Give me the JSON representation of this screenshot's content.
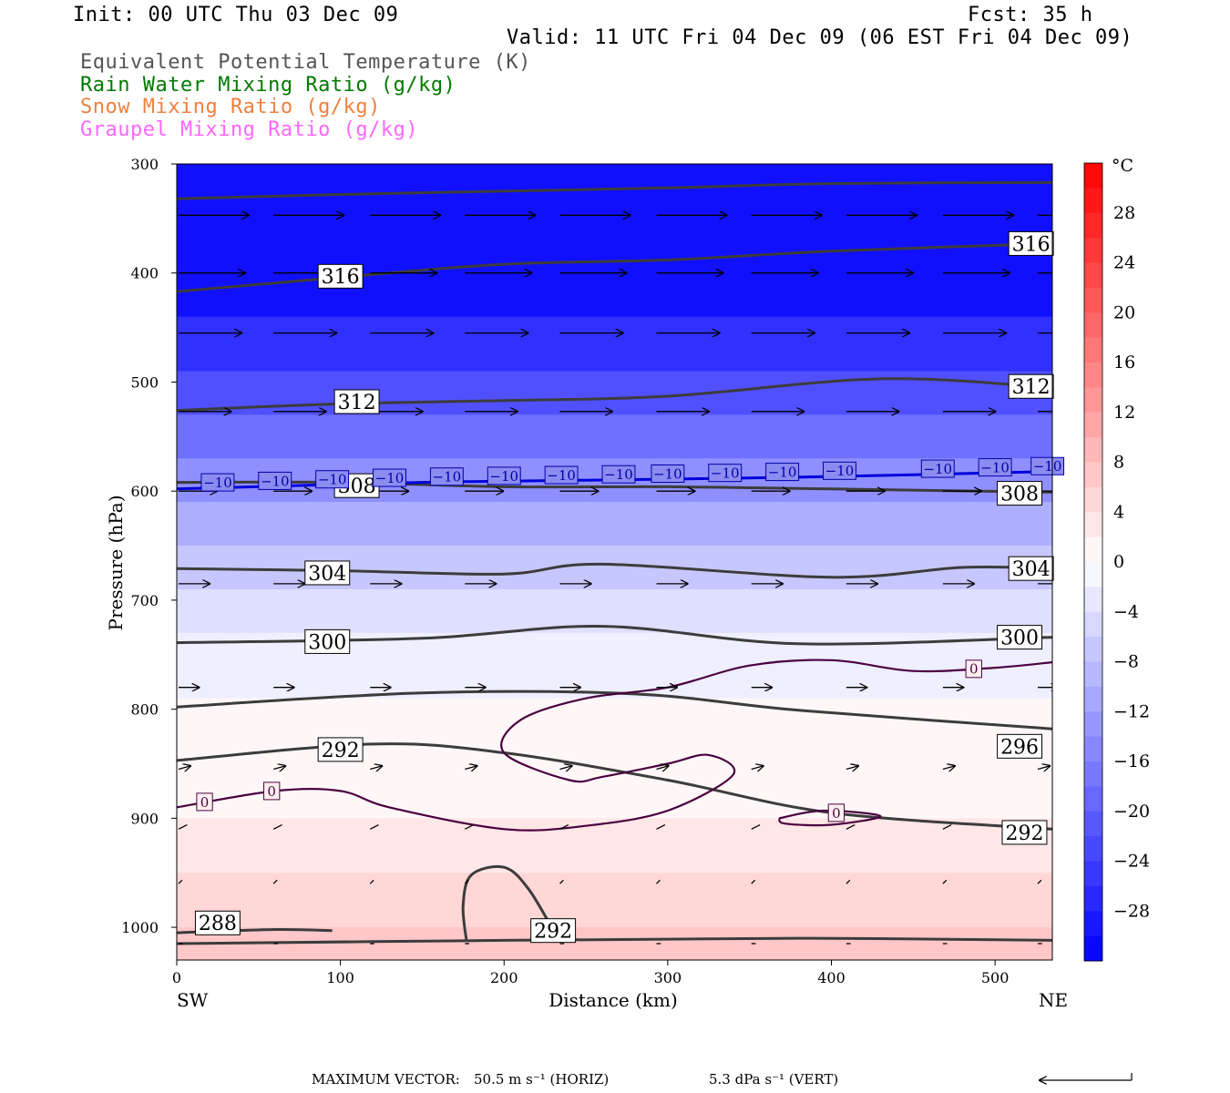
{
  "header": {
    "init": "Init: 00 UTC Thu 03 Dec 09",
    "fcst": "Fcst:   35 h",
    "valid": "Valid: 11 UTC Fri 04 Dec 09 (06 EST Fri 04 Dec 09)"
  },
  "legend": [
    {
      "label": "Equivalent Potential Temperature (K)",
      "color": "#555555"
    },
    {
      "label": "Rain Water Mixing Ratio (g/kg)",
      "color": "#007a00"
    },
    {
      "label": "Snow Mixing Ratio (g/kg)",
      "color": "#f08040"
    },
    {
      "label": "Graupel Mixing Ratio (g/kg)",
      "color": "#ff66ff"
    }
  ],
  "footer": {
    "max_vector": "MAXIMUM VECTOR:",
    "horiz": "50.5 m s⁻¹ (HORIZ)",
    "vert": "5.3 dPa s⁻¹ (VERT)"
  },
  "chart_data": {
    "type": "cross-section",
    "xlabel": "Distance (km)",
    "ylabel": "Pressure (hPa)",
    "x_left_label": "SW",
    "x_right_label": "NE",
    "xlim": [
      0,
      535
    ],
    "ylim": [
      1030,
      300
    ],
    "x_ticks": [
      0,
      100,
      200,
      300,
      400,
      500
    ],
    "y_ticks": [
      300,
      400,
      500,
      600,
      700,
      800,
      900,
      1000
    ],
    "colorbar": {
      "unit": "°C",
      "ticks": [
        28,
        24,
        20,
        16,
        12,
        8,
        4,
        0,
        -4,
        -8,
        -12,
        -16,
        -20,
        -24,
        -28
      ],
      "range": [
        -32,
        32
      ]
    },
    "temperature_bands": [
      {
        "p_top": 300,
        "p_bot": 440,
        "temp": -30
      },
      {
        "p_top": 440,
        "p_bot": 490,
        "temp": -26
      },
      {
        "p_top": 490,
        "p_bot": 530,
        "temp": -22
      },
      {
        "p_top": 530,
        "p_bot": 570,
        "temp": -18
      },
      {
        "p_top": 570,
        "p_bot": 610,
        "temp": -14
      },
      {
        "p_top": 610,
        "p_bot": 650,
        "temp": -10
      },
      {
        "p_top": 650,
        "p_bot": 690,
        "temp": -7
      },
      {
        "p_top": 690,
        "p_bot": 730,
        "temp": -4
      },
      {
        "p_top": 730,
        "p_bot": 790,
        "temp": -2
      },
      {
        "p_top": 790,
        "p_bot": 900,
        "temp": 1
      },
      {
        "p_top": 900,
        "p_bot": 950,
        "temp": 3
      },
      {
        "p_top": 950,
        "p_bot": 1000,
        "temp": 5
      },
      {
        "p_top": 1000,
        "p_bot": 1030,
        "temp": 7
      }
    ],
    "theta_e_contours": [
      {
        "points": [
          [
            0,
            332
          ],
          [
            100,
            328
          ],
          [
            200,
            325
          ],
          [
            300,
            322
          ],
          [
            400,
            318
          ],
          [
            535,
            317
          ]
        ]
      },
      {
        "points": [
          [
            0,
            417
          ],
          [
            100,
            404
          ],
          [
            200,
            392
          ],
          [
            300,
            388
          ],
          [
            400,
            380
          ],
          [
            535,
            373
          ]
        ]
      },
      {
        "points": [
          [
            0,
            526
          ],
          [
            100,
            520
          ],
          [
            200,
            517
          ],
          [
            300,
            513
          ],
          [
            430,
            497
          ],
          [
            535,
            505
          ]
        ]
      },
      {
        "points": [
          [
            0,
            592
          ],
          [
            100,
            592
          ],
          [
            200,
            596
          ],
          [
            300,
            596
          ],
          [
            400,
            598
          ],
          [
            535,
            601
          ]
        ]
      },
      {
        "points": [
          [
            0,
            671
          ],
          [
            100,
            673
          ],
          [
            200,
            676
          ],
          [
            260,
            667
          ],
          [
            400,
            679
          ],
          [
            480,
            670
          ],
          [
            535,
            671
          ]
        ]
      },
      {
        "points": [
          [
            0,
            739
          ],
          [
            150,
            735
          ],
          [
            260,
            724
          ],
          [
            380,
            740
          ],
          [
            535,
            734
          ]
        ]
      },
      {
        "points": [
          [
            0,
            798
          ],
          [
            150,
            785
          ],
          [
            280,
            786
          ],
          [
            380,
            801
          ],
          [
            535,
            818
          ]
        ]
      },
      {
        "points": [
          [
            0,
            847
          ],
          [
            120,
            832
          ],
          [
            200,
            840
          ],
          [
            300,
            865
          ],
          [
            400,
            895
          ],
          [
            535,
            910
          ]
        ]
      },
      {
        "points": [
          [
            0,
            1015
          ],
          [
            200,
            1012
          ],
          [
            380,
            1010
          ],
          [
            535,
            1012
          ]
        ]
      },
      {
        "points": [
          [
            0,
            1005
          ],
          [
            60,
            1002
          ],
          [
            95,
            1003
          ]
        ]
      },
      {
        "points": [
          [
            177,
            1012
          ],
          [
            175,
            980
          ],
          [
            180,
            952
          ],
          [
            200,
            945
          ],
          [
            215,
            965
          ],
          [
            232,
            1008
          ]
        ]
      }
    ],
    "theta_e_labels": [
      {
        "x": 100,
        "p": 403,
        "text": "316"
      },
      {
        "x": 522,
        "p": 373,
        "text": "316"
      },
      {
        "x": 110,
        "p": 518,
        "text": "312"
      },
      {
        "x": 522,
        "p": 504,
        "text": "312"
      },
      {
        "x": 110,
        "p": 595,
        "text": "308"
      },
      {
        "x": 515,
        "p": 602,
        "text": "308"
      },
      {
        "x": 92,
        "p": 675,
        "text": "304"
      },
      {
        "x": 522,
        "p": 671,
        "text": "304"
      },
      {
        "x": 92,
        "p": 738,
        "text": "300"
      },
      {
        "x": 515,
        "p": 734,
        "text": "300"
      },
      {
        "x": 100,
        "p": 837,
        "text": "292"
      },
      {
        "x": 515,
        "p": 834,
        "text": "296"
      },
      {
        "x": 518,
        "p": 913,
        "text": "292"
      },
      {
        "x": 25,
        "p": 996,
        "text": "288"
      },
      {
        "x": 230,
        "p": 1003,
        "text": "292"
      }
    ],
    "isotherm_minus10": {
      "points": [
        [
          0,
          598
        ],
        [
          150,
          592
        ],
        [
          250,
          590
        ],
        [
          350,
          588
        ],
        [
          450,
          585
        ],
        [
          535,
          582
        ]
      ],
      "label": "−10",
      "label_x": [
        25,
        60,
        95,
        130,
        165,
        200,
        235,
        270,
        300,
        335,
        370,
        405,
        465,
        500,
        532
      ]
    },
    "isotherm_0": [
      {
        "points": [
          [
            0,
            890
          ],
          [
            60,
            875
          ],
          [
            100,
            875
          ],
          [
            130,
            890
          ],
          [
            200,
            910
          ],
          [
            250,
            907
          ],
          [
            300,
            893
          ],
          [
            340,
            860
          ],
          [
            325,
            842
          ],
          [
            300,
            850
          ],
          [
            260,
            862
          ],
          [
            240,
            865
          ],
          [
            200,
            840
          ],
          [
            210,
            810
          ],
          [
            250,
            790
          ],
          [
            300,
            780
          ],
          [
            350,
            760
          ],
          [
            400,
            755
          ],
          [
            450,
            765
          ],
          [
            500,
            762
          ],
          [
            535,
            757
          ]
        ]
      },
      {
        "points": [
          [
            368,
            900
          ],
          [
            395,
            893
          ],
          [
            430,
            898
          ],
          [
            400,
            906
          ],
          [
            372,
            905
          ],
          [
            368,
            900
          ]
        ]
      }
    ],
    "isotherm_0_labels": [
      {
        "x": 17,
        "p": 885,
        "text": "0"
      },
      {
        "x": 58,
        "p": 875,
        "text": "0"
      },
      {
        "x": 403,
        "p": 895,
        "text": "0"
      },
      {
        "x": 487,
        "p": 763,
        "text": "0"
      }
    ],
    "wind_rows": [
      {
        "p": 347,
        "x": [
          0,
          58,
          117,
          175,
          233,
          292,
          350,
          408,
          467,
          525
        ],
        "u": 1.0,
        "w": 0.0
      },
      {
        "p": 400,
        "x": [
          0,
          58,
          117,
          175,
          233,
          292,
          350,
          408,
          467,
          525
        ],
        "u": 0.95,
        "w": 0.0
      },
      {
        "p": 455,
        "x": [
          0,
          58,
          117,
          175,
          233,
          292,
          350,
          408,
          467,
          525
        ],
        "u": 0.9,
        "w": 0.0
      },
      {
        "p": 527,
        "x": [
          0,
          58,
          117,
          175,
          233,
          292,
          350,
          408,
          467,
          525
        ],
        "u": 0.75,
        "w": 0.0
      },
      {
        "p": 600,
        "x": [
          0,
          58,
          117,
          175,
          233,
          292,
          350,
          408,
          467,
          525
        ],
        "u": 0.55,
        "w": 0.0
      },
      {
        "p": 685,
        "x": [
          0,
          58,
          117,
          175,
          233,
          292,
          350,
          408,
          467,
          525
        ],
        "u": 0.45,
        "w": 0.0
      },
      {
        "p": 780,
        "x": [
          0,
          58,
          117,
          175,
          233,
          292,
          350,
          408,
          467,
          525
        ],
        "u": 0.3,
        "w": 0.0
      },
      {
        "p": 855,
        "x": [
          0,
          58,
          117,
          175,
          233,
          292,
          350,
          408,
          467,
          525
        ],
        "u": 0.18,
        "w": -0.05
      },
      {
        "p": 910,
        "x": [
          0,
          58,
          117,
          175,
          233,
          292,
          350,
          408,
          467,
          525
        ],
        "u": 0.12,
        "w": -0.06
      },
      {
        "p": 960,
        "x": [
          0,
          58,
          117,
          175,
          233,
          292,
          350,
          408,
          467,
          525
        ],
        "u": 0.05,
        "w": -0.05
      },
      {
        "p": 1015,
        "x": [
          0,
          58,
          117,
          175,
          233,
          292,
          350,
          408,
          467,
          525
        ],
        "u": 0.06,
        "w": 0.0
      }
    ]
  }
}
